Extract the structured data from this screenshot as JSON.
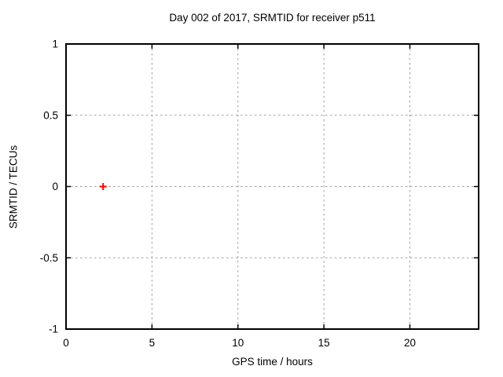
{
  "window": {
    "background": "#ffffff"
  },
  "chart_data": {
    "type": "scatter",
    "title": "Day 002 of 2017, SRMTID for receiver p511",
    "xlabel": "GPS time / hours",
    "ylabel": "SRMTID / TECUs",
    "xlim": [
      0,
      24
    ],
    "ylim": [
      -1,
      1
    ],
    "xticks": [
      0,
      5,
      10,
      15,
      20
    ],
    "yticks": [
      -1,
      -0.5,
      0,
      0.5,
      1
    ],
    "grid": true,
    "legend_position": "none",
    "colors": {
      "border": "#000000",
      "tick": "#000000",
      "grid": "#9e9e9e",
      "point": "#ff0000"
    },
    "series": [
      {
        "name": "SRMTID",
        "marker": "plus",
        "color": "#ff0000",
        "points": [
          [
            2.16,
            0
          ]
        ]
      }
    ]
  }
}
